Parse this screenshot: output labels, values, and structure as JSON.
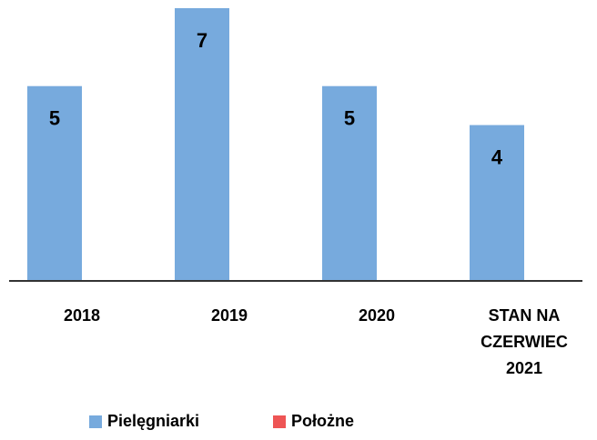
{
  "chart_data": {
    "type": "bar",
    "categories": [
      "2018",
      "2019",
      "2020",
      "STAN NA CZERWIEC 2021"
    ],
    "series": [
      {
        "name": "Pielęgniarki",
        "color": "#77aadd",
        "values": [
          5,
          7,
          5,
          4
        ]
      },
      {
        "name": "Położne",
        "color": "#ee5555",
        "values": [
          null,
          null,
          null,
          null
        ]
      }
    ],
    "ylim": [
      0,
      7
    ],
    "legend": "bottom"
  }
}
